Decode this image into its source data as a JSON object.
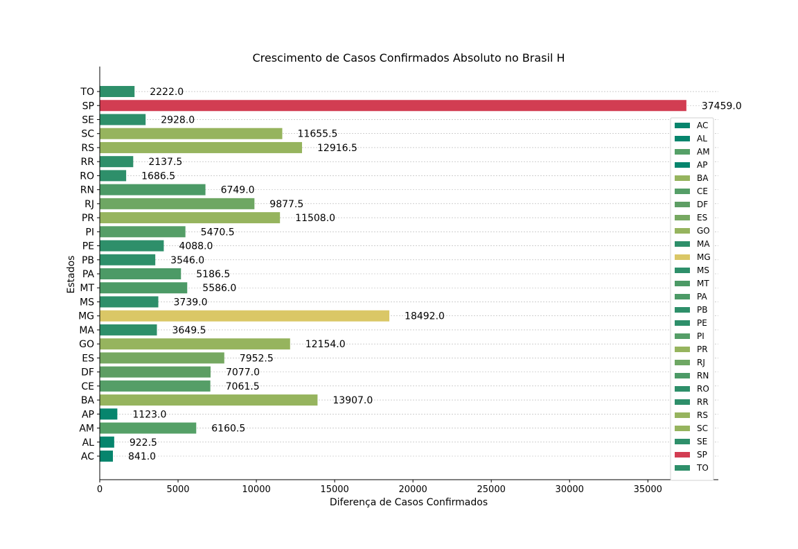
{
  "chart_data": {
    "type": "bar",
    "orientation": "horizontal",
    "title": "Crescimento de Casos Confirmados Absoluto no Brasil H",
    "xlabel": "Diferença de Casos Confirmados",
    "ylabel": "Estados",
    "xlim": [
      0,
      39500
    ],
    "xticks": [
      0,
      5000,
      10000,
      15000,
      20000,
      25000,
      30000,
      35000
    ],
    "grid": "horizontal dashed",
    "legend_position": "right",
    "categories": [
      "AC",
      "AL",
      "AM",
      "AP",
      "BA",
      "CE",
      "DF",
      "ES",
      "GO",
      "MA",
      "MG",
      "MS",
      "MT",
      "PA",
      "PB",
      "PE",
      "PI",
      "PR",
      "RJ",
      "RN",
      "RO",
      "RR",
      "RS",
      "SC",
      "SE",
      "SP",
      "TO"
    ],
    "values": [
      841.0,
      922.5,
      6160.5,
      1123.0,
      13907.0,
      7061.5,
      7077.0,
      7952.5,
      12154.0,
      3649.5,
      18492.0,
      3739.0,
      5586.0,
      5186.5,
      3546.0,
      4088.0,
      5470.5,
      11508.0,
      9877.5,
      6749.0,
      1686.5,
      2137.5,
      12916.5,
      11655.5,
      2928.0,
      37459.0,
      2222.0
    ],
    "value_labels": [
      "841.0",
      "922.5",
      "6160.5",
      "1123.0",
      "13907.0",
      "7061.5",
      "7077.0",
      "7952.5",
      "12154.0",
      "3649.5",
      "18492.0",
      "3739.0",
      "5586.0",
      "5186.5",
      "3546.0",
      "4088.0",
      "5470.5",
      "11508.0",
      "9877.5",
      "6749.0",
      "1686.5",
      "2137.5",
      "12916.5",
      "11655.5",
      "2928.0",
      "37459.0",
      "2222.0"
    ],
    "colors": [
      "#06856d",
      "#06856d",
      "#55a067",
      "#06856d",
      "#96b45e",
      "#559e67",
      "#5d9e64",
      "#76a861",
      "#96b45e",
      "#2e8f6a",
      "#dac766",
      "#2e8f6a",
      "#4c9a66",
      "#4c9a66",
      "#2e8f6a",
      "#2e8f6a",
      "#559e67",
      "#96b45e",
      "#6ea763",
      "#4c9a66",
      "#2e8f6a",
      "#2e8f6a",
      "#96b45e",
      "#96b45e",
      "#2e8f6a",
      "#d23d52",
      "#2e8f6a"
    ]
  }
}
